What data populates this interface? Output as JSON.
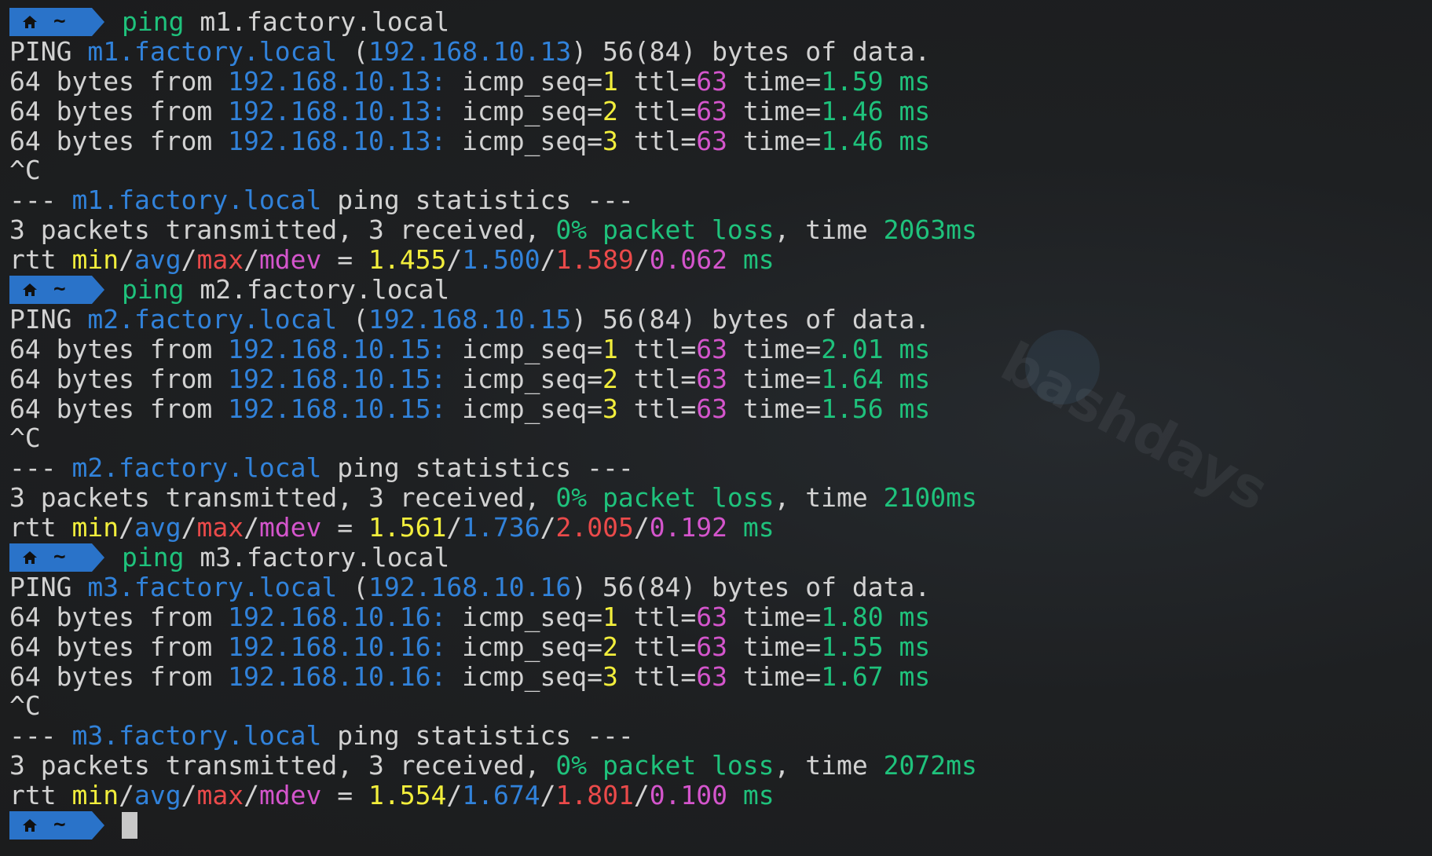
{
  "prompt": {
    "dir": "~",
    "icon": "home-icon",
    "color": "#2a73c9"
  },
  "watermark": "bashdays",
  "colors": {
    "w": "#d2d2d2",
    "b": "#3182da",
    "g": "#1fc27c",
    "y": "#f2ee3c",
    "m": "#d455cc",
    "r": "#ea4a4a"
  },
  "lines": [
    {
      "prompt": true,
      "segs": [
        {
          "t": "ping",
          "c": "g"
        },
        {
          "t": " m1.factory.local",
          "c": "w"
        }
      ]
    },
    {
      "segs": [
        {
          "t": "PING ",
          "c": "w"
        },
        {
          "t": "m1.factory.local",
          "c": "b"
        },
        {
          "t": " (",
          "c": "w"
        },
        {
          "t": "192.168.10.13",
          "c": "b"
        },
        {
          "t": ") 56(84) bytes of data.",
          "c": "w"
        }
      ]
    },
    {
      "segs": [
        {
          "t": "64 bytes from ",
          "c": "w"
        },
        {
          "t": "192.168.10.13:",
          "c": "b"
        },
        {
          "t": " icmp_seq=",
          "c": "w"
        },
        {
          "t": "1",
          "c": "y"
        },
        {
          "t": " ttl=",
          "c": "w"
        },
        {
          "t": "63",
          "c": "m"
        },
        {
          "t": " time=",
          "c": "w"
        },
        {
          "t": "1.59 ms",
          "c": "g"
        }
      ]
    },
    {
      "segs": [
        {
          "t": "64 bytes from ",
          "c": "w"
        },
        {
          "t": "192.168.10.13:",
          "c": "b"
        },
        {
          "t": " icmp_seq=",
          "c": "w"
        },
        {
          "t": "2",
          "c": "y"
        },
        {
          "t": " ttl=",
          "c": "w"
        },
        {
          "t": "63",
          "c": "m"
        },
        {
          "t": " time=",
          "c": "w"
        },
        {
          "t": "1.46 ms",
          "c": "g"
        }
      ]
    },
    {
      "segs": [
        {
          "t": "64 bytes from ",
          "c": "w"
        },
        {
          "t": "192.168.10.13:",
          "c": "b"
        },
        {
          "t": " icmp_seq=",
          "c": "w"
        },
        {
          "t": "3",
          "c": "y"
        },
        {
          "t": " ttl=",
          "c": "w"
        },
        {
          "t": "63",
          "c": "m"
        },
        {
          "t": " time=",
          "c": "w"
        },
        {
          "t": "1.46 ms",
          "c": "g"
        }
      ]
    },
    {
      "segs": [
        {
          "t": "^C",
          "c": "w"
        }
      ]
    },
    {
      "segs": [
        {
          "t": "--- ",
          "c": "w"
        },
        {
          "t": "m1.factory.local",
          "c": "b"
        },
        {
          "t": " ping statistics ---",
          "c": "w"
        }
      ]
    },
    {
      "segs": [
        {
          "t": "3 packets transmitted, 3 received, ",
          "c": "w"
        },
        {
          "t": "0% packet loss",
          "c": "g"
        },
        {
          "t": ", time ",
          "c": "w"
        },
        {
          "t": "2063ms",
          "c": "g"
        }
      ]
    },
    {
      "segs": [
        {
          "t": "rtt ",
          "c": "w"
        },
        {
          "t": "min",
          "c": "y"
        },
        {
          "t": "/",
          "c": "w"
        },
        {
          "t": "avg",
          "c": "b"
        },
        {
          "t": "/",
          "c": "w"
        },
        {
          "t": "max",
          "c": "r"
        },
        {
          "t": "/",
          "c": "w"
        },
        {
          "t": "mdev",
          "c": "m"
        },
        {
          "t": " = ",
          "c": "w"
        },
        {
          "t": "1.455",
          "c": "y"
        },
        {
          "t": "/",
          "c": "w"
        },
        {
          "t": "1.500",
          "c": "b"
        },
        {
          "t": "/",
          "c": "w"
        },
        {
          "t": "1.589",
          "c": "r"
        },
        {
          "t": "/",
          "c": "w"
        },
        {
          "t": "0.062",
          "c": "m"
        },
        {
          "t": " ms",
          "c": "g"
        }
      ]
    },
    {
      "prompt": true,
      "segs": [
        {
          "t": "ping",
          "c": "g"
        },
        {
          "t": " m2.factory.local",
          "c": "w"
        }
      ]
    },
    {
      "segs": [
        {
          "t": "PING ",
          "c": "w"
        },
        {
          "t": "m2.factory.local",
          "c": "b"
        },
        {
          "t": " (",
          "c": "w"
        },
        {
          "t": "192.168.10.15",
          "c": "b"
        },
        {
          "t": ") 56(84) bytes of data.",
          "c": "w"
        }
      ]
    },
    {
      "segs": [
        {
          "t": "64 bytes from ",
          "c": "w"
        },
        {
          "t": "192.168.10.15:",
          "c": "b"
        },
        {
          "t": " icmp_seq=",
          "c": "w"
        },
        {
          "t": "1",
          "c": "y"
        },
        {
          "t": " ttl=",
          "c": "w"
        },
        {
          "t": "63",
          "c": "m"
        },
        {
          "t": " time=",
          "c": "w"
        },
        {
          "t": "2.01 ms",
          "c": "g"
        }
      ]
    },
    {
      "segs": [
        {
          "t": "64 bytes from ",
          "c": "w"
        },
        {
          "t": "192.168.10.15:",
          "c": "b"
        },
        {
          "t": " icmp_seq=",
          "c": "w"
        },
        {
          "t": "2",
          "c": "y"
        },
        {
          "t": " ttl=",
          "c": "w"
        },
        {
          "t": "63",
          "c": "m"
        },
        {
          "t": " time=",
          "c": "w"
        },
        {
          "t": "1.64 ms",
          "c": "g"
        }
      ]
    },
    {
      "segs": [
        {
          "t": "64 bytes from ",
          "c": "w"
        },
        {
          "t": "192.168.10.15:",
          "c": "b"
        },
        {
          "t": " icmp_seq=",
          "c": "w"
        },
        {
          "t": "3",
          "c": "y"
        },
        {
          "t": " ttl=",
          "c": "w"
        },
        {
          "t": "63",
          "c": "m"
        },
        {
          "t": " time=",
          "c": "w"
        },
        {
          "t": "1.56 ms",
          "c": "g"
        }
      ]
    },
    {
      "segs": [
        {
          "t": "^C",
          "c": "w"
        }
      ]
    },
    {
      "segs": [
        {
          "t": "--- ",
          "c": "w"
        },
        {
          "t": "m2.factory.local",
          "c": "b"
        },
        {
          "t": " ping statistics ---",
          "c": "w"
        }
      ]
    },
    {
      "segs": [
        {
          "t": "3 packets transmitted, 3 received, ",
          "c": "w"
        },
        {
          "t": "0% packet loss",
          "c": "g"
        },
        {
          "t": ", time ",
          "c": "w"
        },
        {
          "t": "2100ms",
          "c": "g"
        }
      ]
    },
    {
      "segs": [
        {
          "t": "rtt ",
          "c": "w"
        },
        {
          "t": "min",
          "c": "y"
        },
        {
          "t": "/",
          "c": "w"
        },
        {
          "t": "avg",
          "c": "b"
        },
        {
          "t": "/",
          "c": "w"
        },
        {
          "t": "max",
          "c": "r"
        },
        {
          "t": "/",
          "c": "w"
        },
        {
          "t": "mdev",
          "c": "m"
        },
        {
          "t": " = ",
          "c": "w"
        },
        {
          "t": "1.561",
          "c": "y"
        },
        {
          "t": "/",
          "c": "w"
        },
        {
          "t": "1.736",
          "c": "b"
        },
        {
          "t": "/",
          "c": "w"
        },
        {
          "t": "2.005",
          "c": "r"
        },
        {
          "t": "/",
          "c": "w"
        },
        {
          "t": "0.192",
          "c": "m"
        },
        {
          "t": " ms",
          "c": "g"
        }
      ]
    },
    {
      "prompt": true,
      "segs": [
        {
          "t": "ping",
          "c": "g"
        },
        {
          "t": " m3.factory.local",
          "c": "w"
        }
      ]
    },
    {
      "segs": [
        {
          "t": "PING ",
          "c": "w"
        },
        {
          "t": "m3.factory.local",
          "c": "b"
        },
        {
          "t": " (",
          "c": "w"
        },
        {
          "t": "192.168.10.16",
          "c": "b"
        },
        {
          "t": ") 56(84) bytes of data.",
          "c": "w"
        }
      ]
    },
    {
      "segs": [
        {
          "t": "64 bytes from ",
          "c": "w"
        },
        {
          "t": "192.168.10.16:",
          "c": "b"
        },
        {
          "t": " icmp_seq=",
          "c": "w"
        },
        {
          "t": "1",
          "c": "y"
        },
        {
          "t": " ttl=",
          "c": "w"
        },
        {
          "t": "63",
          "c": "m"
        },
        {
          "t": " time=",
          "c": "w"
        },
        {
          "t": "1.80 ms",
          "c": "g"
        }
      ]
    },
    {
      "segs": [
        {
          "t": "64 bytes from ",
          "c": "w"
        },
        {
          "t": "192.168.10.16:",
          "c": "b"
        },
        {
          "t": " icmp_seq=",
          "c": "w"
        },
        {
          "t": "2",
          "c": "y"
        },
        {
          "t": " ttl=",
          "c": "w"
        },
        {
          "t": "63",
          "c": "m"
        },
        {
          "t": " time=",
          "c": "w"
        },
        {
          "t": "1.55 ms",
          "c": "g"
        }
      ]
    },
    {
      "segs": [
        {
          "t": "64 bytes from ",
          "c": "w"
        },
        {
          "t": "192.168.10.16:",
          "c": "b"
        },
        {
          "t": " icmp_seq=",
          "c": "w"
        },
        {
          "t": "3",
          "c": "y"
        },
        {
          "t": " ttl=",
          "c": "w"
        },
        {
          "t": "63",
          "c": "m"
        },
        {
          "t": " time=",
          "c": "w"
        },
        {
          "t": "1.67 ms",
          "c": "g"
        }
      ]
    },
    {
      "segs": [
        {
          "t": "^C",
          "c": "w"
        }
      ]
    },
    {
      "segs": [
        {
          "t": "--- ",
          "c": "w"
        },
        {
          "t": "m3.factory.local",
          "c": "b"
        },
        {
          "t": " ping statistics ---",
          "c": "w"
        }
      ]
    },
    {
      "segs": [
        {
          "t": "3 packets transmitted, 3 received, ",
          "c": "w"
        },
        {
          "t": "0% packet loss",
          "c": "g"
        },
        {
          "t": ", time ",
          "c": "w"
        },
        {
          "t": "2072ms",
          "c": "g"
        }
      ]
    },
    {
      "segs": [
        {
          "t": "rtt ",
          "c": "w"
        },
        {
          "t": "min",
          "c": "y"
        },
        {
          "t": "/",
          "c": "w"
        },
        {
          "t": "avg",
          "c": "b"
        },
        {
          "t": "/",
          "c": "w"
        },
        {
          "t": "max",
          "c": "r"
        },
        {
          "t": "/",
          "c": "w"
        },
        {
          "t": "mdev",
          "c": "m"
        },
        {
          "t": " = ",
          "c": "w"
        },
        {
          "t": "1.554",
          "c": "y"
        },
        {
          "t": "/",
          "c": "w"
        },
        {
          "t": "1.674",
          "c": "b"
        },
        {
          "t": "/",
          "c": "w"
        },
        {
          "t": "1.801",
          "c": "r"
        },
        {
          "t": "/",
          "c": "w"
        },
        {
          "t": "0.100",
          "c": "m"
        },
        {
          "t": " ms",
          "c": "g"
        }
      ]
    },
    {
      "prompt": true,
      "cursor": true,
      "segs": []
    }
  ]
}
